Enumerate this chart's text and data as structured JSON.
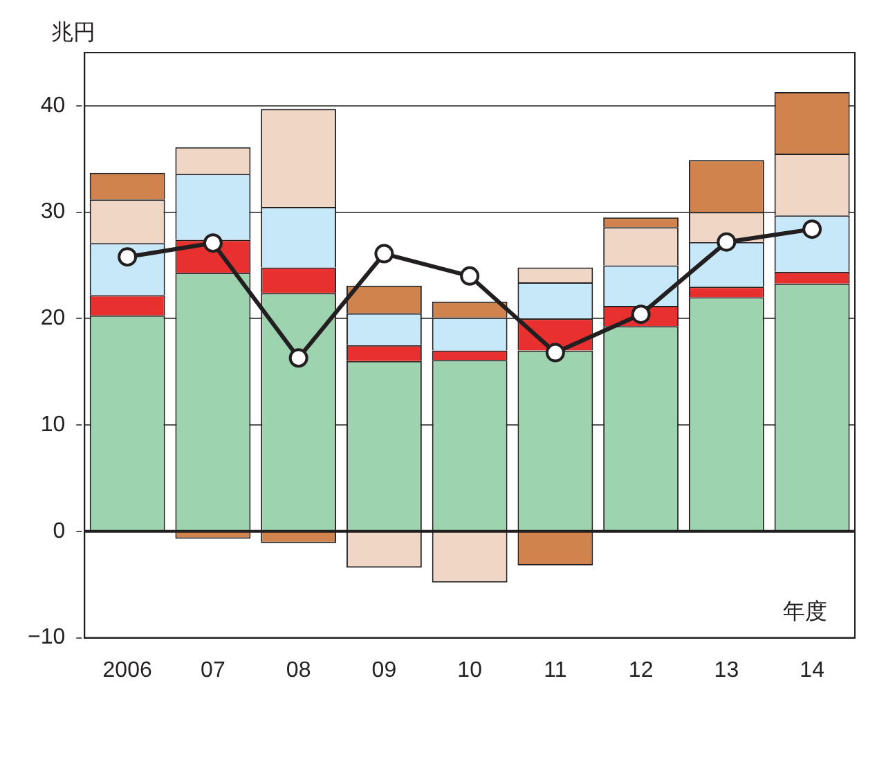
{
  "chart_data": {
    "type": "bar",
    "stacked": true,
    "ylabel": "兆円",
    "xlabel": "年度",
    "categories": [
      "2006",
      "07",
      "08",
      "09",
      "10",
      "11",
      "12",
      "13",
      "14"
    ],
    "series": [
      {
        "color": "#9dd3ae",
        "values": [
          20.3,
          24.3,
          22.4,
          16.0,
          16.1,
          17.0,
          19.3,
          22.0,
          23.3
        ]
      },
      {
        "color": "#e8312e",
        "values": [
          1.9,
          3.1,
          2.4,
          1.5,
          0.9,
          3.0,
          1.9,
          1.0,
          1.1
        ]
      },
      {
        "color": "#c6e8f8",
        "values": [
          4.9,
          6.2,
          5.7,
          3.0,
          3.1,
          3.4,
          3.8,
          4.2,
          5.3
        ]
      },
      {
        "color": "#f0d6c4",
        "values": [
          4.1,
          2.5,
          9.2,
          -3.4,
          -4.8,
          1.4,
          3.6,
          2.8,
          5.8
        ]
      },
      {
        "color": "#d0834c",
        "values": [
          2.5,
          -0.7,
          -1.1,
          2.6,
          1.5,
          -3.2,
          0.9,
          4.9,
          5.8
        ]
      },
      {
        "type": "line",
        "color": "#231f20",
        "marker": "circle",
        "values": [
          25.8,
          27.1,
          16.3,
          26.1,
          24.0,
          16.8,
          20.4,
          27.2,
          28.4
        ]
      }
    ],
    "ylim": [
      -10,
      45
    ],
    "yticks": [
      -10,
      0,
      10,
      20,
      30,
      40
    ],
    "grid": "y",
    "legend": false
  }
}
